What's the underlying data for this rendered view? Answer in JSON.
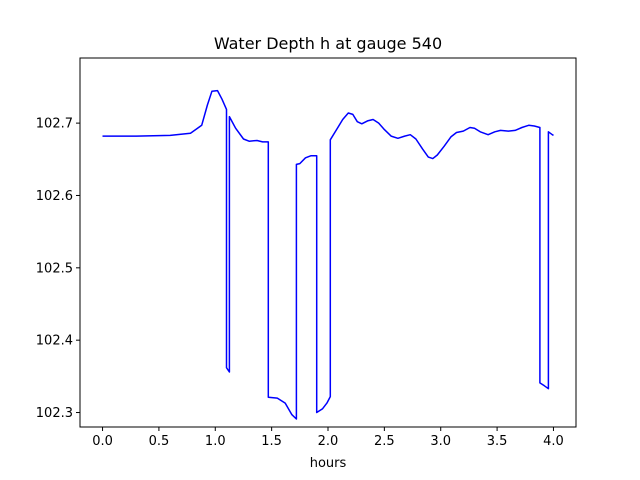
{
  "chart_data": {
    "type": "line",
    "title": "Water Depth h at gauge 540",
    "xlabel": "hours",
    "ylabel": "",
    "xlim": [
      -0.2,
      4.2
    ],
    "ylim": [
      102.28,
      102.79
    ],
    "xticks": [
      0.0,
      0.5,
      1.0,
      1.5,
      2.0,
      2.5,
      3.0,
      3.5,
      4.0
    ],
    "xtick_labels": [
      "0.0",
      "0.5",
      "1.0",
      "1.5",
      "2.0",
      "2.5",
      "3.0",
      "3.5",
      "4.0"
    ],
    "yticks": [
      102.3,
      102.4,
      102.5,
      102.6,
      102.7
    ],
    "ytick_labels": [
      "102.3",
      "102.4",
      "102.5",
      "102.6",
      "102.7"
    ],
    "grid": false,
    "series": [
      {
        "color": "#0000ff",
        "points": [
          [
            0.0,
            102.682
          ],
          [
            0.3,
            102.682
          ],
          [
            0.6,
            102.683
          ],
          [
            0.78,
            102.686
          ],
          [
            0.88,
            102.697
          ],
          [
            0.93,
            102.725
          ],
          [
            0.97,
            102.744
          ],
          [
            1.02,
            102.745
          ],
          [
            1.06,
            102.733
          ],
          [
            1.1,
            102.719
          ],
          [
            1.1,
            102.362
          ],
          [
            1.125,
            102.356
          ],
          [
            1.125,
            102.709
          ],
          [
            1.18,
            102.693
          ],
          [
            1.25,
            102.678
          ],
          [
            1.3,
            102.675
          ],
          [
            1.37,
            102.676
          ],
          [
            1.42,
            102.674
          ],
          [
            1.47,
            102.674
          ],
          [
            1.47,
            102.321
          ],
          [
            1.55,
            102.32
          ],
          [
            1.62,
            102.313
          ],
          [
            1.68,
            102.297
          ],
          [
            1.72,
            102.291
          ],
          [
            1.72,
            102.643
          ],
          [
            1.75,
            102.644
          ],
          [
            1.8,
            102.652
          ],
          [
            1.85,
            102.655
          ],
          [
            1.9,
            102.655
          ],
          [
            1.9,
            102.3
          ],
          [
            1.95,
            102.305
          ],
          [
            1.99,
            102.313
          ],
          [
            2.02,
            102.322
          ],
          [
            2.02,
            102.677
          ],
          [
            2.08,
            102.692
          ],
          [
            2.13,
            102.705
          ],
          [
            2.18,
            102.714
          ],
          [
            2.22,
            102.712
          ],
          [
            2.26,
            102.702
          ],
          [
            2.3,
            102.699
          ],
          [
            2.35,
            102.703
          ],
          [
            2.4,
            102.705
          ],
          [
            2.45,
            102.7
          ],
          [
            2.5,
            102.691
          ],
          [
            2.56,
            102.682
          ],
          [
            2.62,
            102.679
          ],
          [
            2.68,
            102.682
          ],
          [
            2.73,
            102.684
          ],
          [
            2.78,
            102.678
          ],
          [
            2.84,
            102.664
          ],
          [
            2.89,
            102.653
          ],
          [
            2.93,
            102.651
          ],
          [
            2.97,
            102.656
          ],
          [
            3.03,
            102.668
          ],
          [
            3.09,
            102.681
          ],
          [
            3.14,
            102.687
          ],
          [
            3.2,
            102.689
          ],
          [
            3.26,
            102.694
          ],
          [
            3.3,
            102.693
          ],
          [
            3.35,
            102.688
          ],
          [
            3.42,
            102.684
          ],
          [
            3.48,
            102.688
          ],
          [
            3.53,
            102.69
          ],
          [
            3.6,
            102.689
          ],
          [
            3.66,
            102.69
          ],
          [
            3.72,
            102.694
          ],
          [
            3.78,
            102.697
          ],
          [
            3.83,
            102.696
          ],
          [
            3.88,
            102.694
          ],
          [
            3.88,
            102.341
          ],
          [
            3.92,
            102.337
          ],
          [
            3.955,
            102.333
          ],
          [
            3.955,
            102.688
          ],
          [
            3.99,
            102.684
          ],
          [
            4.0,
            102.683
          ]
        ]
      }
    ]
  }
}
